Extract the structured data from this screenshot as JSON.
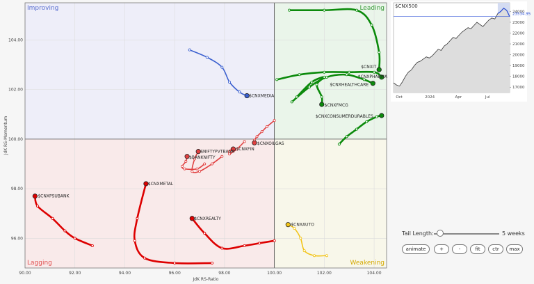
{
  "chart_data": [
    {
      "type": "scatter",
      "subtype": "relative-rotation-graph",
      "xlabel": "JdK RS-Ratio",
      "ylabel": "JdK RS-Momentum",
      "xlim": [
        90.0,
        104.5
      ],
      "ylim": [
        94.8,
        105.5
      ],
      "x_ticks": [
        "90.00",
        "92.00",
        "94.00",
        "96.00",
        "98.00",
        "100.00",
        "102.00",
        "104.00"
      ],
      "y_ticks": [
        "96.00",
        "98.00",
        "100.00",
        "102.00",
        "104.00"
      ],
      "quadrants": {
        "improving": "Improving",
        "leading": "Leading",
        "lagging": "Lagging",
        "weakening": "Weakening"
      },
      "series": [
        {
          "name": "$CNXIT",
          "color": "#0b8a0b",
          "points": [
            [
              100.6,
              105.2
            ],
            [
              102.0,
              105.2
            ],
            [
              103.3,
              105.2
            ],
            [
              103.9,
              104.6
            ],
            [
              104.2,
              103.5
            ],
            [
              104.2,
              102.8
            ]
          ]
        },
        {
          "name": "$CNXPHARMA",
          "color": "#0b8a0b",
          "points": [
            [
              100.1,
              102.4
            ],
            [
              101.0,
              102.6
            ],
            [
              102.0,
              102.7
            ],
            [
              103.0,
              102.7
            ],
            [
              104.0,
              102.7
            ],
            [
              104.3,
              102.5
            ]
          ]
        },
        {
          "name": "$CNXHEALTHCARE",
          "color": "#0b8a0b",
          "points": [
            [
              100.7,
              101.5
            ],
            [
              101.4,
              102.1
            ],
            [
              102.1,
              102.5
            ],
            [
              102.9,
              102.6
            ],
            [
              103.6,
              102.4
            ],
            [
              103.95,
              102.25
            ]
          ]
        },
        {
          "name": "$CNXFMCG",
          "color": "#0b8a0b",
          "points": [
            [
              100.9,
              101.7
            ],
            [
              101.5,
              102.3
            ],
            [
              102.0,
              102.5
            ],
            [
              101.7,
              102.2
            ],
            [
              101.9,
              101.7
            ],
            [
              101.9,
              101.4
            ]
          ]
        },
        {
          "name": "$CNXCONSUMERDURABLES",
          "color": "#0b8a0b",
          "points": [
            [
              102.6,
              99.8
            ],
            [
              102.9,
              100.1
            ],
            [
              103.3,
              100.4
            ],
            [
              103.7,
              100.7
            ],
            [
              104.1,
              100.9
            ],
            [
              104.3,
              100.95
            ]
          ]
        },
        {
          "name": "$CNXMEDIA",
          "color": "#3a5fcf",
          "points": [
            [
              96.6,
              103.6
            ],
            [
              97.3,
              103.3
            ],
            [
              97.9,
              102.9
            ],
            [
              98.2,
              102.3
            ],
            [
              98.6,
              101.9
            ],
            [
              98.9,
              101.75
            ]
          ]
        },
        {
          "name": "$CNXOILGAS",
          "color": "#e04040",
          "points": [
            [
              100.0,
              100.75
            ],
            [
              99.7,
              100.5
            ],
            [
              99.5,
              100.3
            ],
            [
              99.3,
              100.1
            ],
            [
              99.2,
              99.95
            ],
            [
              99.2,
              99.85
            ]
          ]
        },
        {
          "name": "$CNXFIN",
          "color": "#e04040",
          "points": [
            [
              98.8,
              99.9
            ],
            [
              98.5,
              99.6
            ],
            [
              98.2,
              99.4
            ],
            [
              98.2,
              99.5
            ],
            [
              98.3,
              99.6
            ],
            [
              98.35,
              99.6
            ]
          ]
        },
        {
          "name": "$NIFTYPVTBANK",
          "color": "#e04040",
          "points": [
            [
              97.9,
              99.3
            ],
            [
              97.5,
              99.0
            ],
            [
              97.0,
              98.7
            ],
            [
              96.7,
              98.7
            ],
            [
              96.8,
              99.2
            ],
            [
              96.95,
              99.5
            ]
          ]
        },
        {
          "name": "$BANKNIFTY",
          "color": "#e04040",
          "points": [
            [
              97.2,
              99.0
            ],
            [
              96.9,
              98.8
            ],
            [
              96.4,
              98.8
            ],
            [
              96.3,
              98.9
            ],
            [
              96.45,
              99.1
            ],
            [
              96.5,
              99.3
            ]
          ]
        },
        {
          "name": "$CNXPSUBANK",
          "color": "#dd0000",
          "points": [
            [
              92.7,
              95.7
            ],
            [
              92.0,
              96.0
            ],
            [
              91.6,
              96.3
            ],
            [
              91.1,
              96.8
            ],
            [
              90.5,
              97.3
            ],
            [
              90.4,
              97.7
            ]
          ]
        },
        {
          "name": "$CNXMETAL",
          "color": "#dd0000",
          "points": [
            [
              97.5,
              95.0
            ],
            [
              96.0,
              95.0
            ],
            [
              94.8,
              95.2
            ],
            [
              94.4,
              95.9
            ],
            [
              94.5,
              96.8
            ],
            [
              94.85,
              98.2
            ]
          ]
        },
        {
          "name": "$CNXREALTY",
          "color": "#dd0000",
          "points": [
            [
              100.0,
              95.9
            ],
            [
              99.4,
              95.8
            ],
            [
              98.8,
              95.7
            ],
            [
              97.9,
              95.6
            ],
            [
              97.2,
              96.2
            ],
            [
              96.7,
              96.8
            ]
          ]
        },
        {
          "name": "$CNXAUTO",
          "color": "#f2c418",
          "points": [
            [
              102.1,
              95.3
            ],
            [
              101.6,
              95.3
            ],
            [
              101.2,
              95.5
            ],
            [
              101.05,
              96.0
            ],
            [
              100.8,
              96.4
            ],
            [
              100.55,
              96.55
            ]
          ]
        }
      ]
    },
    {
      "type": "area",
      "title": "$CNX500",
      "x_ticks": [
        "Oct",
        "2024",
        "Apr",
        "Jul"
      ],
      "y_ticks": [
        "17000",
        "18000",
        "19000",
        "20000",
        "21000",
        "22000",
        "23000",
        "24000"
      ],
      "ylim": [
        16500,
        24800
      ],
      "last_value_label": "23534.95",
      "values": [
        17400,
        17200,
        17100,
        17500,
        18000,
        18400,
        18600,
        19000,
        19300,
        19400,
        19600,
        19800,
        19700,
        19900,
        20200,
        20500,
        20400,
        20800,
        21000,
        21300,
        21600,
        21500,
        21800,
        22100,
        22300,
        22500,
        22400,
        22700,
        23000,
        22800,
        22600,
        22900,
        23200,
        23400,
        23300,
        23800,
        24000,
        24300,
        24100,
        23535
      ]
    }
  ],
  "controls": {
    "tail_label": "Tail Length:",
    "tail_value": "5 weeks",
    "tail_fraction": 0.1,
    "buttons": [
      "animate",
      "+",
      "-",
      "fit",
      "ctr",
      "max"
    ]
  }
}
